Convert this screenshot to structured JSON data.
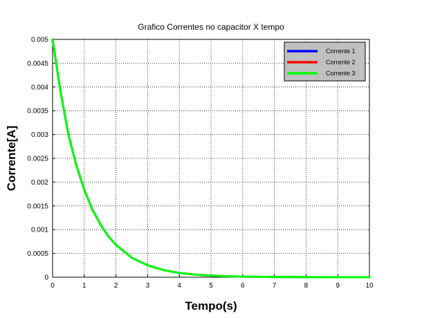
{
  "chart_data": {
    "type": "line",
    "title": "Grafico Correntes no capacitor X tempo",
    "xlabel": "Tempo(s)",
    "ylabel": "Corrente[A]",
    "xlim": [
      0,
      10
    ],
    "ylim": [
      0,
      0.005
    ],
    "xticks": [
      "0",
      "1",
      "2",
      "3",
      "4",
      "5",
      "6",
      "7",
      "8",
      "9",
      "10"
    ],
    "yticks": [
      "0",
      "0.0005",
      "0.001",
      "0.0015",
      "0.002",
      "0.0025",
      "0.003",
      "0.0035",
      "0.004",
      "0.0045",
      "0.005"
    ],
    "grid": true,
    "legend_position": "top-right",
    "x": [
      0,
      0.25,
      0.5,
      0.75,
      1,
      1.25,
      1.5,
      1.75,
      2,
      2.5,
      3,
      3.5,
      4,
      4.5,
      5,
      5.5,
      6,
      7,
      8,
      9,
      10
    ],
    "series": [
      {
        "name": "Corrente 1",
        "color": "#0000ff",
        "values": [
          0.005,
          0.0039,
          0.003,
          0.00235,
          0.00184,
          0.00143,
          0.00112,
          0.00087,
          0.00068,
          0.00041,
          0.00025,
          0.00015,
          9e-05,
          5.5e-05,
          3.4e-05,
          2e-05,
          1.2e-05,
          4.6e-06,
          1.7e-06,
          6e-07,
          2e-07
        ]
      },
      {
        "name": "Corrente 2",
        "color": "#ff0000",
        "values": [
          0.005,
          0.0039,
          0.003,
          0.00235,
          0.00184,
          0.00143,
          0.00112,
          0.00087,
          0.00068,
          0.00041,
          0.00025,
          0.00015,
          9e-05,
          5.5e-05,
          3.4e-05,
          2e-05,
          1.2e-05,
          4.6e-06,
          1.7e-06,
          6e-07,
          2e-07
        ]
      },
      {
        "name": "Corrente 3",
        "color": "#00ff00",
        "values": [
          0.005,
          0.0039,
          0.003,
          0.00235,
          0.00184,
          0.00143,
          0.00112,
          0.00087,
          0.00068,
          0.00041,
          0.00025,
          0.00015,
          9e-05,
          5.5e-05,
          3.4e-05,
          2e-05,
          1.2e-05,
          4.6e-06,
          1.7e-06,
          6e-07,
          2e-07
        ]
      }
    ]
  }
}
